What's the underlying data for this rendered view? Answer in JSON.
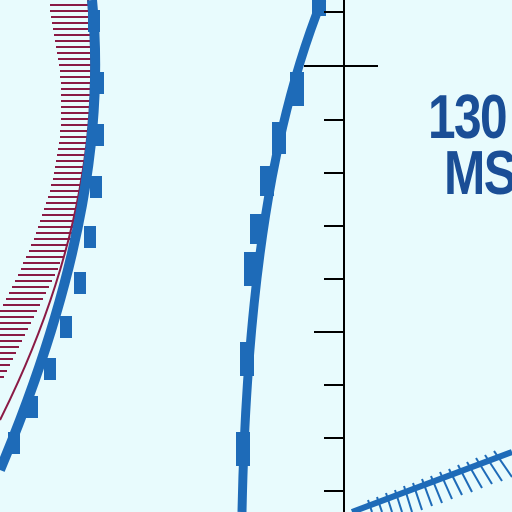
{
  "map": {
    "altitude_label": {
      "value": "130",
      "reference": "MS"
    },
    "colors": {
      "background": "#e8fbfd",
      "airspace_boundary": "#1e6bb8",
      "restricted_area": "#8a1a45",
      "tick_mark": "#000000",
      "label_text": "#1a4e96"
    }
  }
}
